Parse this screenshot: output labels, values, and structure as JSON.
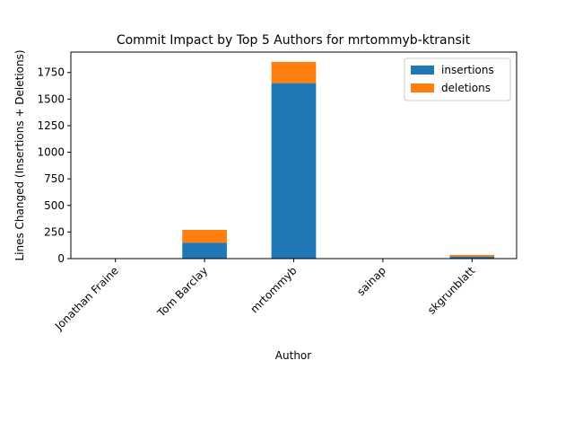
{
  "chart_data": {
    "type": "bar",
    "stacked": true,
    "title": "Commit Impact by Top 5 Authors for mrtommyb-ktransit",
    "xlabel": "Author",
    "ylabel": "Lines Changed (Insertions + Deletions)",
    "categories": [
      "Jonathan Fraine",
      "Tom Barclay",
      "mrtommyb",
      "sainap",
      "skgrunblatt"
    ],
    "series": [
      {
        "name": "insertions",
        "color": "#1f77b4",
        "values": [
          0,
          150,
          1650,
          0,
          20
        ]
      },
      {
        "name": "deletions",
        "color": "#ff7f0e",
        "values": [
          0,
          120,
          200,
          0,
          15
        ]
      }
    ],
    "yticks": [
      0,
      250,
      500,
      750,
      1000,
      1250,
      1500,
      1750
    ],
    "ylim": [
      0,
      1942
    ],
    "legend_position": "top-right",
    "grid": false
  }
}
